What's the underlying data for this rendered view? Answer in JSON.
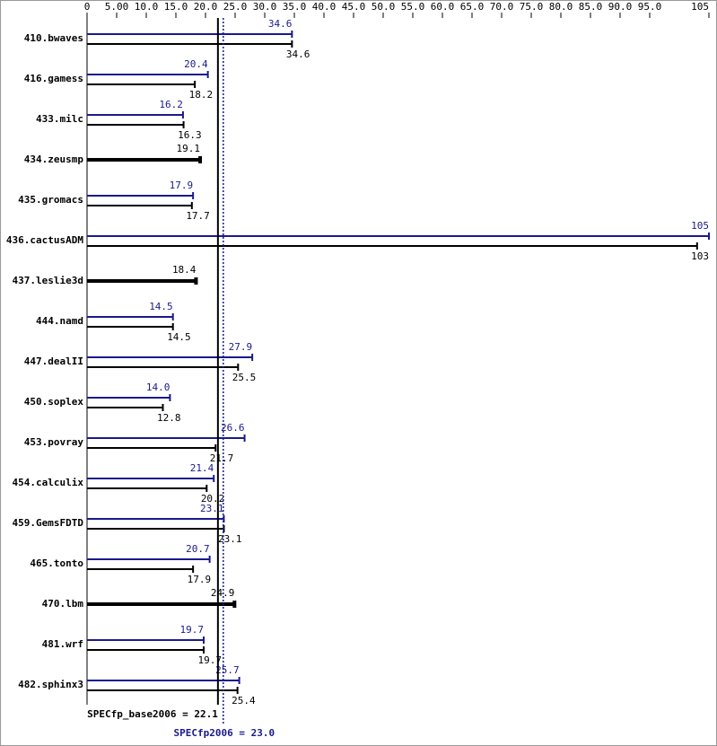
{
  "chart_data": {
    "type": "bar",
    "orientation": "horizontal",
    "categories": [
      "410.bwaves",
      "416.gamess",
      "433.milc",
      "434.zeusmp",
      "435.gromacs",
      "436.cactusADM",
      "437.leslie3d",
      "444.namd",
      "447.dealII",
      "450.soplex",
      "453.povray",
      "454.calculix",
      "459.GemsFDTD",
      "465.tonto",
      "470.lbm",
      "481.wrf",
      "482.sphinx3"
    ],
    "series": [
      {
        "name": "SPECfp2006",
        "color": "#1a1a8c",
        "values": [
          34.6,
          20.4,
          16.2,
          null,
          17.9,
          105,
          null,
          14.5,
          27.9,
          14.0,
          26.6,
          21.4,
          23.1,
          20.7,
          null,
          19.7,
          25.7
        ],
        "value_labels": [
          "34.6",
          "20.4",
          "16.2",
          null,
          "17.9",
          "105",
          null,
          "14.5",
          "27.9",
          "14.0",
          "26.6",
          "21.4",
          "23.1",
          "20.7",
          null,
          "19.7",
          "25.7"
        ]
      },
      {
        "name": "SPECfp_base2006",
        "color": "#000000",
        "values": [
          34.6,
          18.2,
          16.3,
          19.1,
          17.7,
          103,
          18.4,
          14.5,
          25.5,
          12.8,
          21.7,
          20.2,
          23.1,
          17.9,
          24.9,
          19.7,
          25.4
        ],
        "value_labels": [
          "34.6",
          "18.2",
          "16.3",
          "19.1",
          "17.7",
          "103",
          "18.4",
          "14.5",
          "25.5",
          "12.8",
          "21.7",
          "20.2",
          "23.1",
          "17.9",
          "24.9",
          "19.7",
          "25.4"
        ]
      }
    ],
    "xlim": [
      0,
      105
    ],
    "xticks": [
      0,
      {
        "value": 5,
        "label": "5.00"
      },
      {
        "value": 10,
        "label": "10.0"
      },
      {
        "value": 15,
        "label": "15.0"
      },
      {
        "value": 20,
        "label": "20.0"
      },
      {
        "value": 25,
        "label": "25.0"
      },
      {
        "value": 30,
        "label": "30.0"
      },
      {
        "value": 35,
        "label": "35.0"
      },
      {
        "value": 40,
        "label": "40.0"
      },
      {
        "value": 45,
        "label": "45.0"
      },
      {
        "value": 50,
        "label": "50.0"
      },
      {
        "value": 55,
        "label": "55.0"
      },
      {
        "value": 60,
        "label": "60.0"
      },
      {
        "value": 65,
        "label": "65.0"
      },
      {
        "value": 70,
        "label": "70.0"
      },
      {
        "value": 75,
        "label": "75.0"
      },
      {
        "value": 80,
        "label": "80.0"
      },
      {
        "value": 85,
        "label": "85.0"
      },
      {
        "value": 90,
        "label": "90.0"
      },
      {
        "value": 95,
        "label": "95.0"
      },
      105
    ],
    "reference_lines": [
      {
        "label": "SPECfp_base2006 = 22.1",
        "value": 22.1,
        "color": "#000000",
        "style": "solid"
      },
      {
        "label": "SPECfp2006 = 23.0",
        "value": 23.0,
        "color": "#1a1a8c",
        "style": "dotted"
      }
    ]
  }
}
